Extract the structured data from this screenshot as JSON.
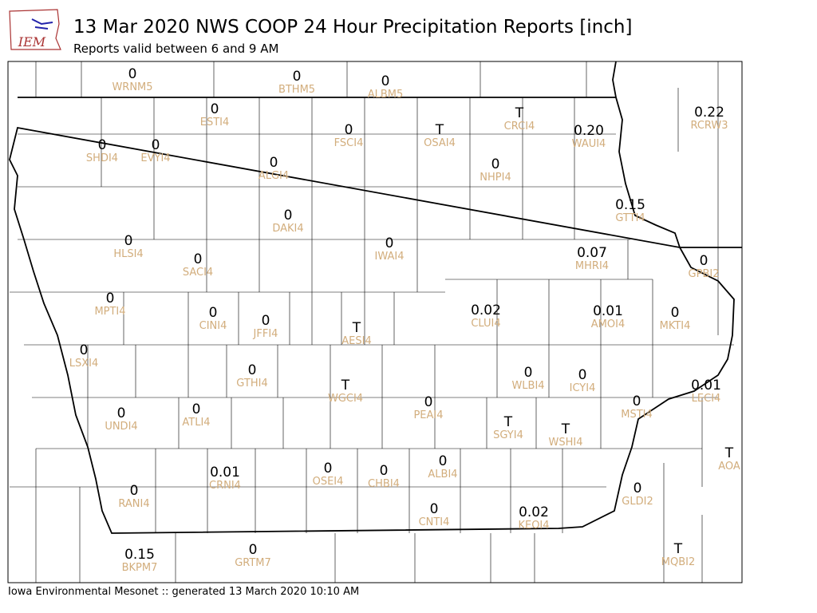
{
  "header": {
    "title": "13 Mar 2020 NWS COOP 24 Hour Precipitation Reports [inch]",
    "subtitle": "Reports valid between 6 and 9 AM",
    "logo": "IEM"
  },
  "stations": [
    {
      "id": "WRNM5",
      "value": "0"
    },
    {
      "id": "BTHM5",
      "value": "0"
    },
    {
      "id": "ALBM5",
      "value": "0"
    },
    {
      "id": "ESTI4",
      "value": "0"
    },
    {
      "id": "FSCI4",
      "value": "0"
    },
    {
      "id": "OSAI4",
      "value": "T"
    },
    {
      "id": "CRCI4",
      "value": "T"
    },
    {
      "id": "WAUI4",
      "value": "0.20"
    },
    {
      "id": "RCRW3",
      "value": "0.22"
    },
    {
      "id": "SHDI4",
      "value": "0"
    },
    {
      "id": "EVYI4",
      "value": "0"
    },
    {
      "id": "ALGI4",
      "value": "0"
    },
    {
      "id": "NHPI4",
      "value": "0"
    },
    {
      "id": "GTTI4",
      "value": "0.15"
    },
    {
      "id": "DAKI4",
      "value": "0"
    },
    {
      "id": "HLSI4",
      "value": "0"
    },
    {
      "id": "IWAI4",
      "value": "0"
    },
    {
      "id": "SACI4",
      "value": "0"
    },
    {
      "id": "MHRI4",
      "value": "0.07"
    },
    {
      "id": "GPBI2",
      "value": "0"
    },
    {
      "id": "MPTI4",
      "value": "0"
    },
    {
      "id": "CLUI4",
      "value": "0.02"
    },
    {
      "id": "AMOI4",
      "value": "0.01"
    },
    {
      "id": "MKTI4",
      "value": "0"
    },
    {
      "id": "CINI4",
      "value": "0"
    },
    {
      "id": "JFFI4",
      "value": "0"
    },
    {
      "id": "AESI4",
      "value": "T"
    },
    {
      "id": "LSXI4",
      "value": "0"
    },
    {
      "id": "GTHI4",
      "value": "0"
    },
    {
      "id": "WLBI4",
      "value": "0"
    },
    {
      "id": "ICYI4",
      "value": "0"
    },
    {
      "id": "LECI4",
      "value": "0.01"
    },
    {
      "id": "WGCI4",
      "value": "T"
    },
    {
      "id": "PEAI4",
      "value": "0"
    },
    {
      "id": "MSTI4",
      "value": "0"
    },
    {
      "id": "UNDI4",
      "value": "0"
    },
    {
      "id": "ATLI4",
      "value": "0"
    },
    {
      "id": "SGYI4",
      "value": "T"
    },
    {
      "id": "WSHI4",
      "value": "T"
    },
    {
      "id": "AOA",
      "value": "T"
    },
    {
      "id": "OSEI4",
      "value": "0"
    },
    {
      "id": "CHBI4",
      "value": "0"
    },
    {
      "id": "ALBI4",
      "value": "0"
    },
    {
      "id": "CRNI4",
      "value": "0.01"
    },
    {
      "id": "RANI4",
      "value": "0"
    },
    {
      "id": "GLDI2",
      "value": "0"
    },
    {
      "id": "CNTI4",
      "value": "0"
    },
    {
      "id": "KEOI4",
      "value": "0.02"
    },
    {
      "id": "BKPM7",
      "value": "0.15"
    },
    {
      "id": "GRTM7",
      "value": "0"
    },
    {
      "id": "MQBI2",
      "value": "T"
    }
  ],
  "footer": "Iowa Environmental Mesonet :: generated 13 March 2020 10:10 AM"
}
